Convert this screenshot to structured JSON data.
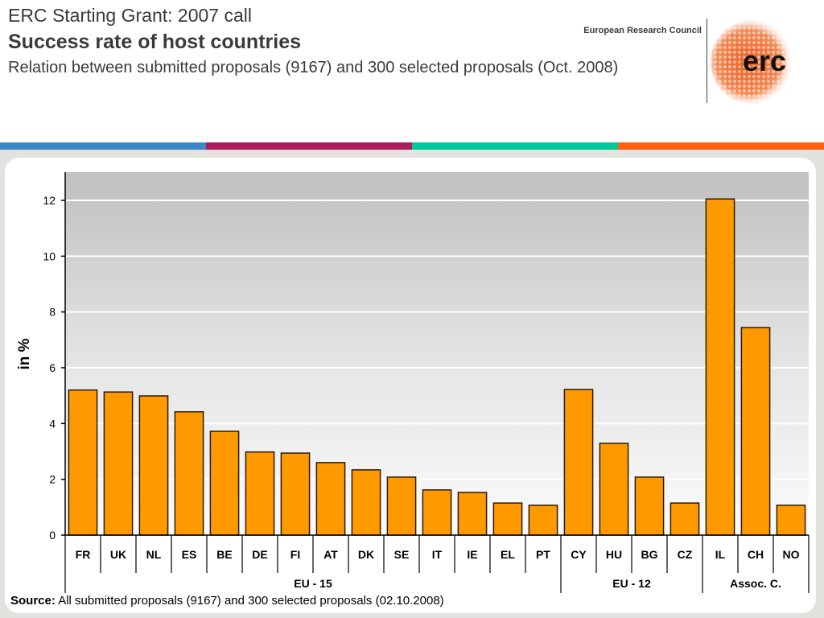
{
  "header": {
    "title_line1": "ERC Starting Grant: 2007 call",
    "title_line2": "Success rate of host countries",
    "title_line3": "Relation between submitted proposals (9167) and 300 selected proposals (Oct. 2008)",
    "organization": "European Research Council",
    "logo_text": "erc",
    "logo_icon": "erc-dotted-sphere-logo"
  },
  "stripes": [
    "#3a87c4",
    "#a91e5b",
    "#00c896",
    "#ff5f0f"
  ],
  "colors": {
    "bar": "#ff9900",
    "bar_outline": "#2a1a0a"
  },
  "chart_data": {
    "type": "bar",
    "title": "Success rate of host countries",
    "xlabel": "",
    "ylabel": "in %",
    "ylim": [
      0,
      13
    ],
    "yticks": [
      0,
      2,
      4,
      6,
      8,
      10,
      12
    ],
    "grid": true,
    "categories": [
      "FR",
      "UK",
      "NL",
      "ES",
      "BE",
      "DE",
      "FI",
      "AT",
      "DK",
      "SE",
      "IT",
      "IE",
      "EL",
      "PT",
      "CY",
      "HU",
      "BG",
      "CZ",
      "IL",
      "CH",
      "NO"
    ],
    "values": [
      5.2,
      5.13,
      4.99,
      4.42,
      3.72,
      2.98,
      2.94,
      2.6,
      2.34,
      2.08,
      1.62,
      1.53,
      1.15,
      1.07,
      5.22,
      3.29,
      2.08,
      1.15,
      12.05,
      7.44,
      1.07
    ],
    "groups": [
      {
        "label": "EU - 15",
        "start": 0,
        "end": 13
      },
      {
        "label": "EU - 12",
        "start": 14,
        "end": 17
      },
      {
        "label": "Assoc. C.",
        "start": 18,
        "end": 20
      }
    ]
  },
  "source": {
    "label": "Source:",
    "text": " All submitted proposals (9167) and 300 selected proposals (02.10.2008)"
  }
}
